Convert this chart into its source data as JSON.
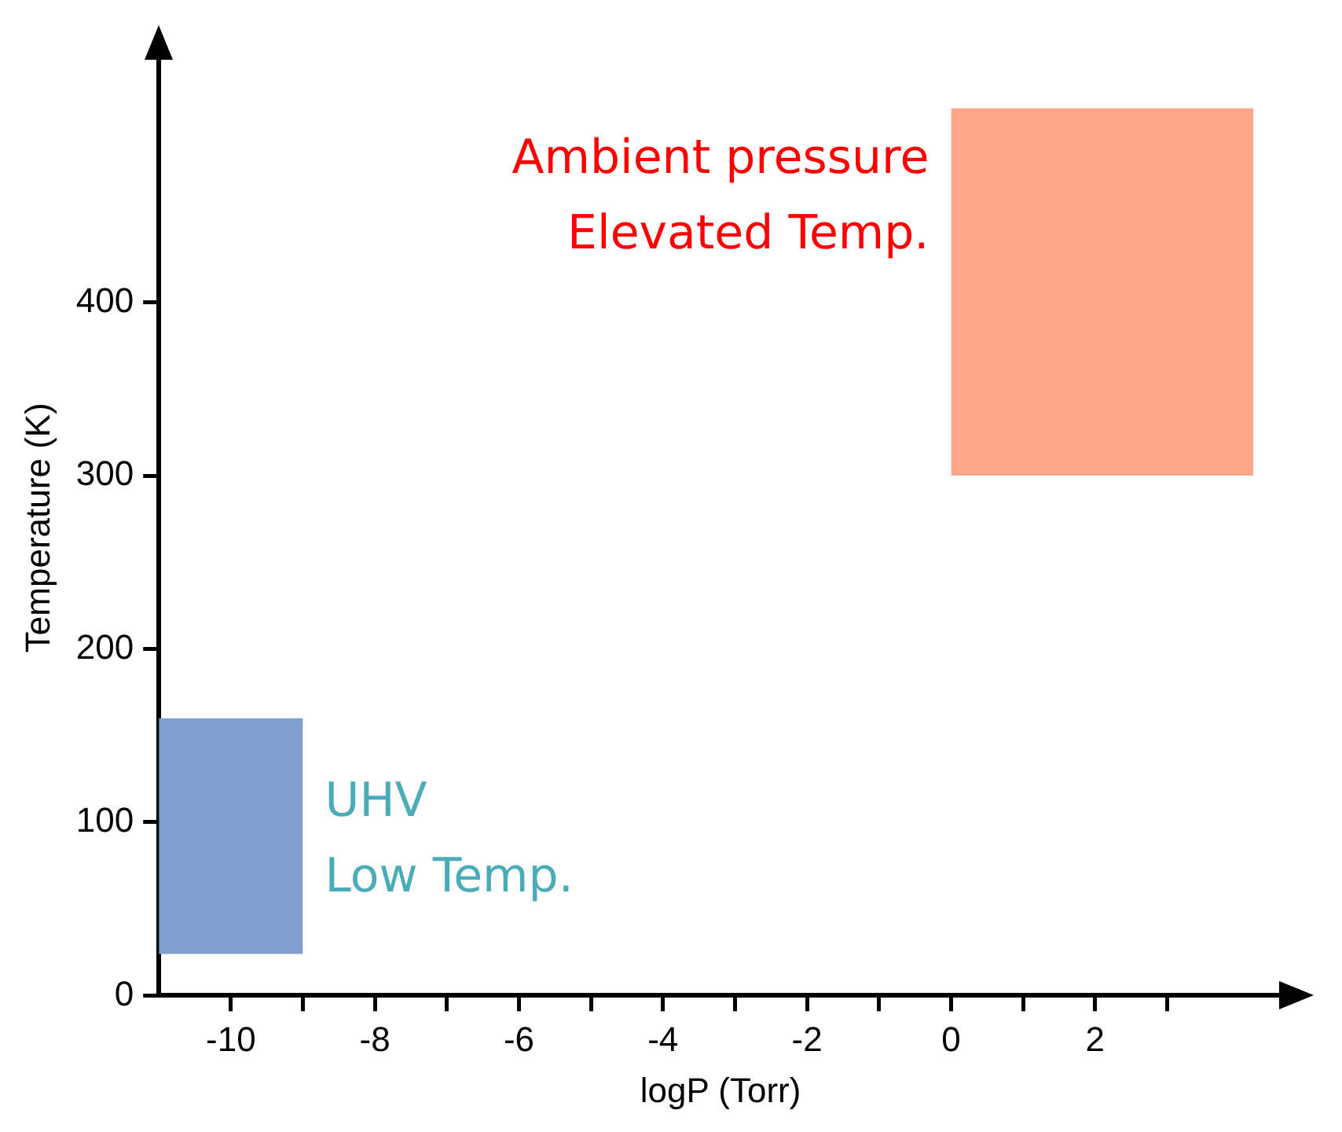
{
  "chart_data": {
    "type": "line",
    "xlabel": "logP (Torr)",
    "ylabel": "Temperature (K)",
    "series": [
      {
        "color": "#7f9fcf",
        "x": [
          -11,
          -9
        ],
        "values": [
          null,
          null
        ],
        "lower": [
          24,
          24
        ],
        "upper": [
          160,
          160
        ]
      },
      {
        "color": "#ffa68a",
        "x": [
          0,
          4.2
        ],
        "values": [
          null,
          null
        ],
        "lower": [
          300,
          300
        ],
        "upper": [
          512,
          512
        ]
      }
    ],
    "xlim": [
      -11,
      4.6
    ],
    "ylim": [
      0,
      540
    ],
    "xticks": [
      -10,
      {
        "value": -9,
        "label": null
      },
      -8,
      {
        "value": -7,
        "label": null
      },
      -6,
      {
        "value": -5,
        "label": null
      },
      -4,
      {
        "value": -3,
        "label": null
      },
      -2,
      {
        "value": -1,
        "label": null
      },
      0,
      {
        "value": 1,
        "label": null
      },
      2,
      {
        "value": 3,
        "label": null
      }
    ],
    "yticks": [
      0,
      100,
      200,
      300,
      400
    ],
    "annotations": [
      "Ambient pressure",
      "Elevated Temp.",
      "UHV",
      "Low Temp."
    ],
    "grid": false,
    "legend": false
  }
}
